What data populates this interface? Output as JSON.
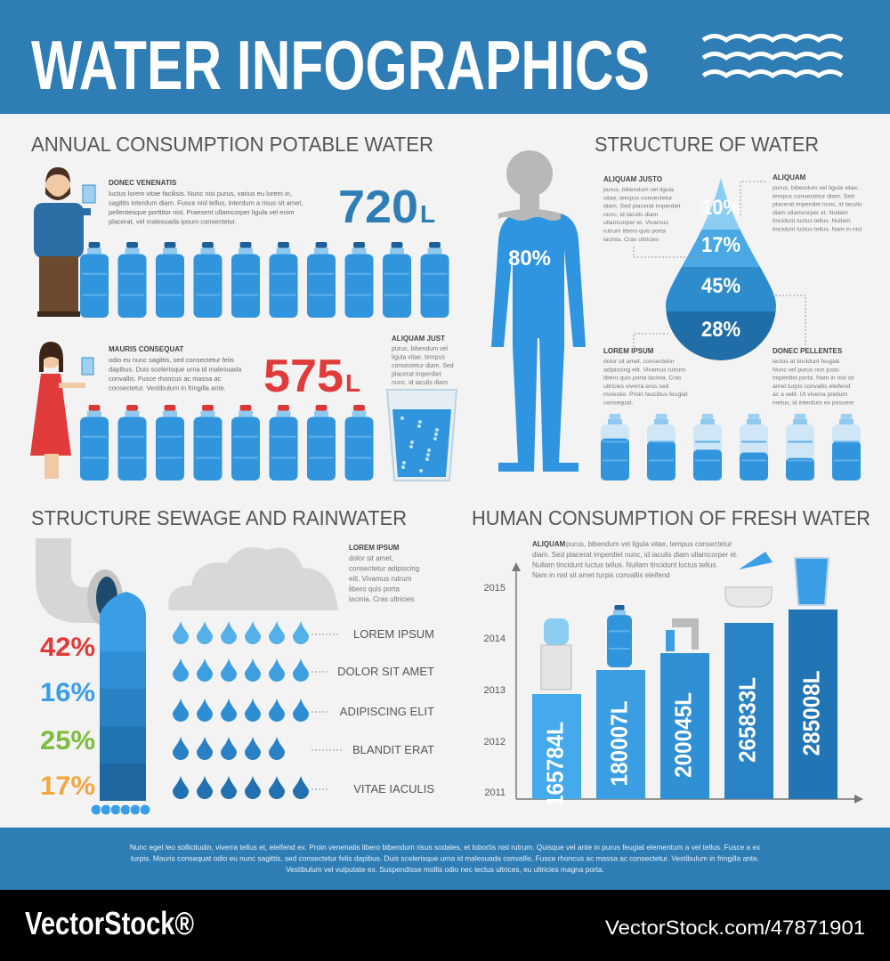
{
  "header": {
    "title": "WATER INFOGRAPHICS"
  },
  "annual": {
    "title": "ANNUAL CONSUMPTION POTABLE WATER",
    "man": {
      "heading": "DONEC VENENATIS",
      "lines": [
        "luctus lorem vitae facilisis. Nunc nisi purus, varius eu lorem in,",
        "sagittis interdum diam. Fusce nisl tellus, interdum a risus sit amet,",
        "pellentesque porttitor nisl. Praesent ullamcorper ligula vel enim",
        "placerat, vel malesuada ipsum consectetur."
      ],
      "amount": "720",
      "unit": "L"
    },
    "woman": {
      "heading": "MAURIS CONSEQUAT",
      "lines": [
        "odio eu nunc sagittis, sed consectetur felis",
        "dapibus. Duis scelerisque urna id malesuada",
        "convallis. Fusce rhoncus ac massa ac",
        "consectetur. Vestibulum in fringilla ante."
      ],
      "amount": "575",
      "unit": "L"
    },
    "glass": {
      "heading": "ALIQUAM JUST",
      "lines": [
        "purus, bibendum vel",
        "ligula vitae, tempus",
        "consectetur diam. Sed",
        "placerat imperdiet",
        "nunc, id iaculis diam"
      ]
    }
  },
  "structure": {
    "title": "STRUCTURE OF WATER",
    "body_percent": "80%",
    "drop_percents": [
      "10%",
      "17%",
      "45%",
      "28%"
    ],
    "notes": [
      {
        "heading": "ALIQUAM JUSTO",
        "lines": [
          "purus, bibendum vel ligula",
          "vitae, tempus consectetur",
          "diam. Sed placerat imperdiet",
          "nunc, id iaculis diam",
          "ullamcorper et. Vivamus",
          "rutrum libero quis porta",
          "lacinia. Cras ultricies"
        ]
      },
      {
        "heading": "ALIQUAM",
        "lines": [
          "purus, bibendum vel ligula vitae,",
          "tempus consectetur diam. Sed",
          "placerat imperdiet nunc, id iaculis",
          "diam ullamcorper et. Nullam",
          "tincidunt luctus tellus. Nullam",
          "tincidunt luctus tellus.  Nam in nisl"
        ]
      },
      {
        "heading": "LOREM IPSUM",
        "lines": [
          "dolor sit amet, consectetur",
          "adipiscing elit. Vivamus rutrum",
          "libero quis porta lacinia. Cras",
          "ultricies viverra eros sed",
          "molestie. Proin faucibus feugiat",
          "consequat."
        ]
      },
      {
        "heading": "DONEC PELLENTES",
        "lines": [
          "lectus at tincidunt feugiat.",
          "Nunc vel purus non justo",
          "imperdiet porta. Nam in nisl sit",
          "amet turpis convallis eleifend",
          "ac a velit. Ut viverra pretium",
          "metus, id interdum ex posuere"
        ]
      }
    ]
  },
  "sewage": {
    "title": "STRUCTURE SEWAGE AND RAINWATER",
    "note": {
      "heading": "LOREM IPSUM",
      "lines": [
        "dolor sit amet,",
        "consectetur adipiscing",
        "elit. Vivamus rutrum",
        "libero quis porta",
        "lacinia. Cras ultricies"
      ]
    },
    "percents": [
      "42%",
      "16%",
      "25%",
      "17%"
    ],
    "labels": [
      "LOREM IPSUM",
      "DOLOR SIT AMET",
      "ADIPISCING ELIT",
      "BLANDIT ERAT",
      "VITAE IACULIS"
    ]
  },
  "human": {
    "title": "HUMAN CONSUMPTION OF FRESH WATER",
    "note": {
      "heading": "ALIQUAM",
      "first_line": "purus, bibendum vel ligula vitae, tempus consectetur",
      "lines": [
        "diam. Sed placerat imperdiet nunc, id iaculis diam ullamcorper et.",
        "Nullam tincidunt luctus tellus.  Nullam tincidunt luctus tellus.",
        "Nam in nisl sit amet turpis convallis eleifend"
      ]
    },
    "years": [
      "2015",
      "2014",
      "2013",
      "2012",
      "2011"
    ],
    "bars": [
      "165784L",
      "180007L",
      "200045L",
      "265833L",
      "285008L"
    ]
  },
  "footer": {
    "lines": [
      "Nunc eget leo sollicitudin, viverra tellus et, eleifend ex. Proin venenatis libero bibendum risus sodales, et lobortis nisl rutrum. Quisque vel ante in purus feugiat elementum a vel tellus. Fusce a ex",
      "turpis. Mauris consequat odio eu nunc sagittis, sed consectetur felis dapibus. Duis scelerisque urna id malesuada convallis. Fusce rhoncus ac massa ac consectetur. Vestibulum in fringilla ante.",
      "Vestibulum vel vulputate ex. Suspendisse mollis odio nec lectus ultrices, eu ultricies magna porta."
    ]
  },
  "watermark": {
    "brand": "VectorStock®",
    "id": "VectorStock.com/47871901"
  }
}
